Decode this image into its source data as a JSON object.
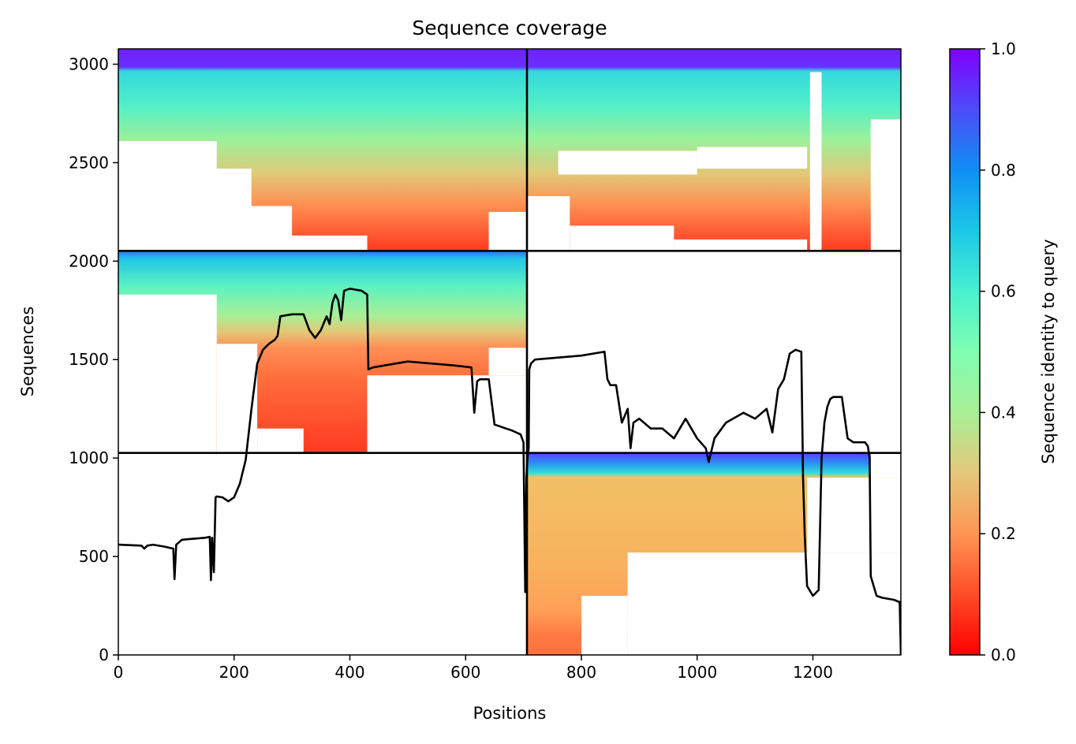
{
  "chart_data": {
    "type": "heatmap",
    "title": "Sequence coverage",
    "xlabel": "Positions",
    "ylabel": "Sequences",
    "xlim": [
      0,
      1352
    ],
    "ylim": [
      0,
      3078
    ],
    "x_ticks": [
      0,
      200,
      400,
      600,
      800,
      1000,
      1200
    ],
    "y_ticks": [
      0,
      500,
      1000,
      1500,
      2000,
      2500,
      3000
    ],
    "grid": false,
    "colormap": "rainbow_r",
    "colorbar": {
      "label": "Sequence identity to query",
      "range": [
        0,
        1
      ],
      "ticks": [
        0.0,
        0.2,
        0.4,
        0.6,
        0.8,
        1.0
      ],
      "tick_labels": [
        "0.0",
        "0.2",
        "0.4",
        "0.6",
        "0.8",
        "1.0"
      ]
    },
    "chain_boundaries": {
      "x": [
        706
      ],
      "y": [
        1026,
        2052
      ]
    },
    "coverage_blocks": [
      {
        "x_range": [
          0,
          706
        ],
        "y_range": [
          2052,
          3078
        ]
      },
      {
        "x_range": [
          706,
          1352
        ],
        "y_range": [
          2052,
          3078
        ]
      },
      {
        "x_range": [
          0,
          706
        ],
        "y_range": [
          1026,
          2052
        ]
      },
      {
        "x_range": [
          706,
          1352
        ],
        "y_range": [
          0,
          1026
        ]
      }
    ],
    "coverage_line": {
      "x": [
        0,
        40,
        45,
        50,
        60,
        80,
        95,
        97,
        100,
        110,
        130,
        150,
        158,
        160,
        162,
        165,
        168,
        170,
        180,
        190,
        200,
        210,
        220,
        230,
        240,
        250,
        260,
        270,
        275,
        280,
        300,
        320,
        330,
        340,
        350,
        360,
        365,
        370,
        375,
        380,
        385,
        390,
        400,
        420,
        430,
        432,
        440,
        460,
        480,
        500,
        540,
        580,
        610,
        615,
        620,
        625,
        640,
        650,
        660,
        680,
        695,
        700,
        703,
        705,
        707,
        709,
        710,
        713,
        720,
        760,
        800,
        840,
        845,
        850,
        860,
        870,
        880,
        885,
        890,
        900,
        920,
        940,
        960,
        980,
        1000,
        1015,
        1020,
        1030,
        1050,
        1080,
        1100,
        1120,
        1130,
        1140,
        1150,
        1160,
        1170,
        1180,
        1183,
        1186,
        1190,
        1200,
        1210,
        1215,
        1220,
        1225,
        1230,
        1235,
        1250,
        1260,
        1270,
        1290,
        1295,
        1298,
        1300,
        1310,
        1320,
        1340,
        1348,
        1350,
        1352
      ],
      "y": [
        560,
        555,
        540,
        555,
        560,
        550,
        540,
        385,
        560,
        585,
        590,
        595,
        600,
        380,
        595,
        420,
        800,
        805,
        800,
        780,
        800,
        870,
        990,
        1250,
        1480,
        1550,
        1580,
        1600,
        1620,
        1720,
        1730,
        1730,
        1650,
        1610,
        1650,
        1720,
        1680,
        1790,
        1830,
        1800,
        1700,
        1850,
        1860,
        1850,
        1830,
        1450,
        1460,
        1470,
        1480,
        1490,
        1480,
        1470,
        1460,
        1230,
        1390,
        1400,
        1400,
        1170,
        1160,
        1140,
        1120,
        1080,
        320,
        900,
        1000,
        1050,
        1450,
        1480,
        1500,
        1510,
        1520,
        1540,
        1400,
        1370,
        1370,
        1180,
        1250,
        1050,
        1180,
        1200,
        1150,
        1150,
        1100,
        1200,
        1100,
        1050,
        980,
        1100,
        1180,
        1230,
        1200,
        1250,
        1130,
        1350,
        1400,
        1530,
        1550,
        1540,
        900,
        600,
        350,
        300,
        330,
        1000,
        1180,
        1260,
        1300,
        1310,
        1310,
        1100,
        1080,
        1080,
        1060,
        1000,
        400,
        300,
        290,
        280,
        270,
        270,
        0
      ]
    }
  }
}
